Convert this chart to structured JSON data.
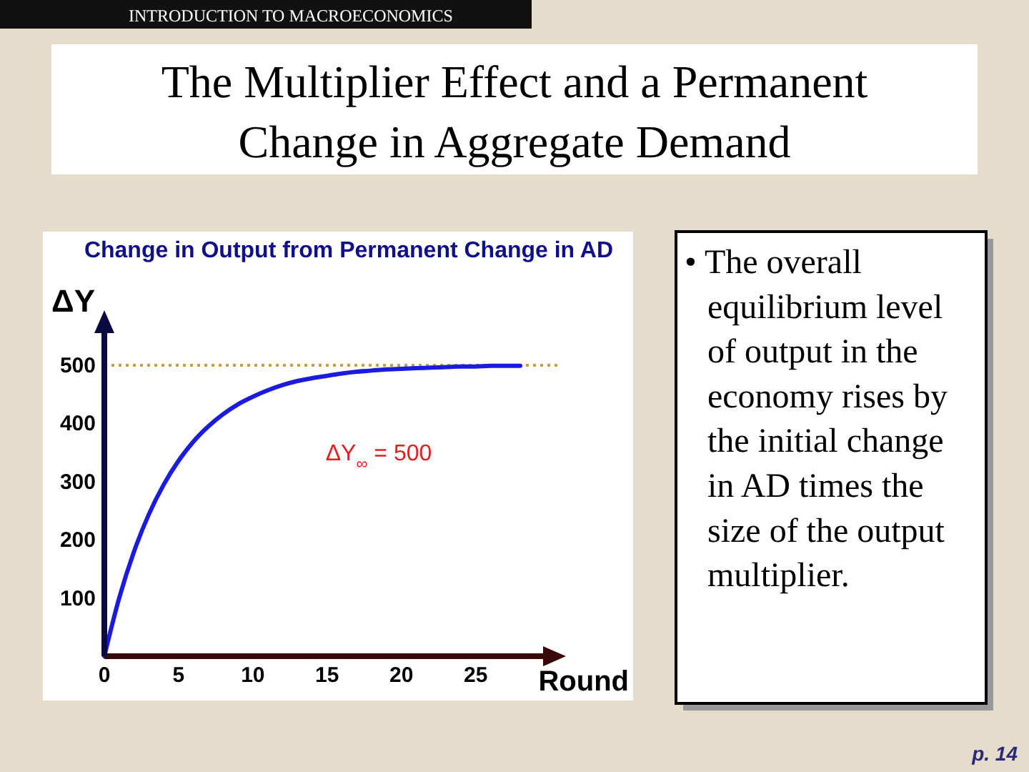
{
  "chart_data": {
    "type": "line",
    "title": "The Multiplier Effect and a Permanent Change in Aggregate Demand",
    "subtitle": "Change in Output from Permanent Change in AD",
    "xlabel": "Round",
    "ylabel": "ΔY",
    "x": [
      0,
      1,
      2,
      3,
      4,
      5,
      6,
      7,
      8,
      9,
      10,
      11,
      12,
      13,
      14,
      15,
      16,
      17,
      18,
      19,
      20,
      21,
      22,
      23,
      24,
      25,
      26,
      27,
      28
    ],
    "series": [
      {
        "color": "#1a1ae0",
        "values": [
          0,
          100,
          180,
          244,
          295,
          336,
          369,
          395,
          416,
          433,
          446,
          457,
          466,
          473,
          478,
          482,
          486,
          489,
          491,
          493,
          494,
          495,
          496,
          497,
          498,
          498,
          499,
          499,
          499
        ]
      }
    ],
    "xlim": [
      0,
      30.5
    ],
    "xticks": [
      0,
      5,
      10,
      15,
      20,
      25
    ],
    "ylim": [
      0,
      575
    ],
    "yticks": [
      100,
      200,
      300,
      400,
      500
    ],
    "ref_lines": [
      {
        "axis": "y",
        "value": 500,
        "color": "#c8a040",
        "line_style": "dotted"
      }
    ],
    "annotations": [
      "ΔY$_{∞}$ = 500",
      "INTRODUCTION TO MACROECONOMICS",
      "• The overall equilibrium level of output in the economy rises by the initial change in AD times the size of the output multiplier.",
      "p. 14"
    ],
    "marker": "none",
    "line_style": "solid",
    "grid": false
  }
}
